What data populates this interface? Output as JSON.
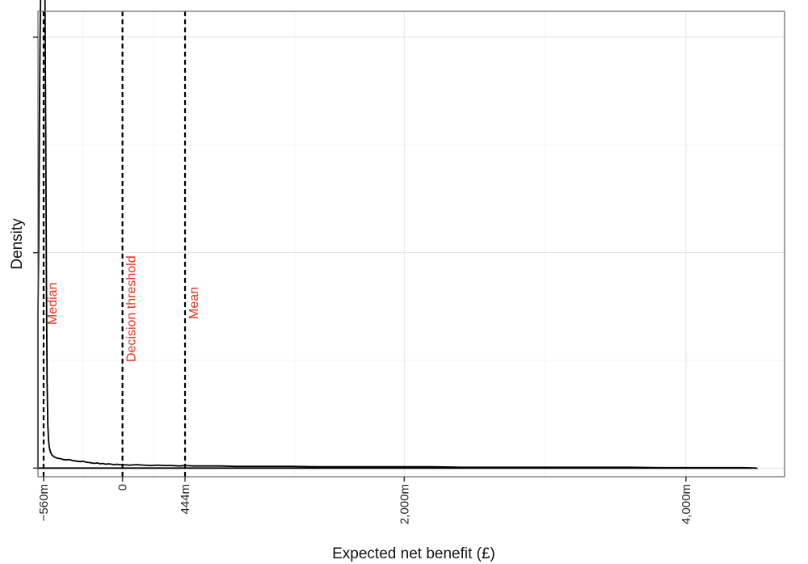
{
  "chart_data": {
    "type": "line",
    "title": "",
    "xlabel": "Expected net benefit (£)",
    "ylabel": "Density",
    "xlim": [
      -600,
      4700
    ],
    "ylim": [
      -0.02,
      1.06
    ],
    "x_ticks": [
      {
        "value": -560,
        "label": "−560m"
      },
      {
        "value": 0,
        "label": "0"
      },
      {
        "value": 444,
        "label": "444m"
      },
      {
        "value": 2000,
        "label": "2,000m"
      },
      {
        "value": 4000,
        "label": "4,000m"
      }
    ],
    "y_ticks": [
      0,
      0.5,
      1.0
    ],
    "grid": true,
    "y_tick_labels_shown": false,
    "line_color": "#000000",
    "annotation_color": "#e8321e",
    "reference_lines": [
      {
        "x": -560,
        "label": "Median"
      },
      {
        "x": 0,
        "label": "Decision threshold"
      },
      {
        "x": 444,
        "label": "Mean"
      }
    ],
    "series": [
      {
        "x": [
          -600,
          -595,
          -590,
          -585,
          -580,
          -575,
          -570,
          -565,
          -560,
          -555,
          -550,
          -545,
          -540,
          -535,
          -530,
          -525,
          -520,
          -515,
          -510,
          -500,
          -480,
          -460,
          -440,
          -420,
          -400,
          -380,
          -360,
          -340,
          -320,
          -300,
          -280,
          -260,
          -240,
          -220,
          -200,
          -180,
          -160,
          -140,
          -120,
          -100,
          -80,
          -60,
          -40,
          -20,
          0,
          50,
          100,
          150,
          200,
          250,
          300,
          350,
          400,
          450,
          500,
          600,
          700,
          800,
          900,
          1000,
          1200,
          1400,
          1600,
          1800,
          2000,
          2200,
          2400,
          2600,
          2800,
          3000,
          3200,
          3400,
          3600,
          3800,
          4000,
          4200,
          4400,
          4500
        ],
        "values": [
          0.36,
          0.52,
          0.78,
          1.0,
          1.12,
          1.23,
          1.31,
          1.35,
          1.33,
          1.25,
          1.08,
          0.78,
          0.42,
          0.2,
          0.1,
          0.065,
          0.05,
          0.042,
          0.036,
          0.03,
          0.025,
          0.023,
          0.022,
          0.02,
          0.019,
          0.02,
          0.018,
          0.017,
          0.016,
          0.015,
          0.016,
          0.014,
          0.013,
          0.012,
          0.011,
          0.012,
          0.01,
          0.011,
          0.009,
          0.01,
          0.009,
          0.008,
          0.009,
          0.008,
          0.008,
          0.007,
          0.008,
          0.007,
          0.006,
          0.007,
          0.006,
          0.006,
          0.005,
          0.006,
          0.005,
          0.005,
          0.005,
          0.004,
          0.004,
          0.004,
          0.004,
          0.003,
          0.003,
          0.003,
          0.003,
          0.003,
          0.002,
          0.002,
          0.002,
          0.002,
          0.002,
          0.002,
          0.002,
          0.001,
          0.001,
          0.001,
          0.001,
          0.0
        ]
      }
    ]
  }
}
